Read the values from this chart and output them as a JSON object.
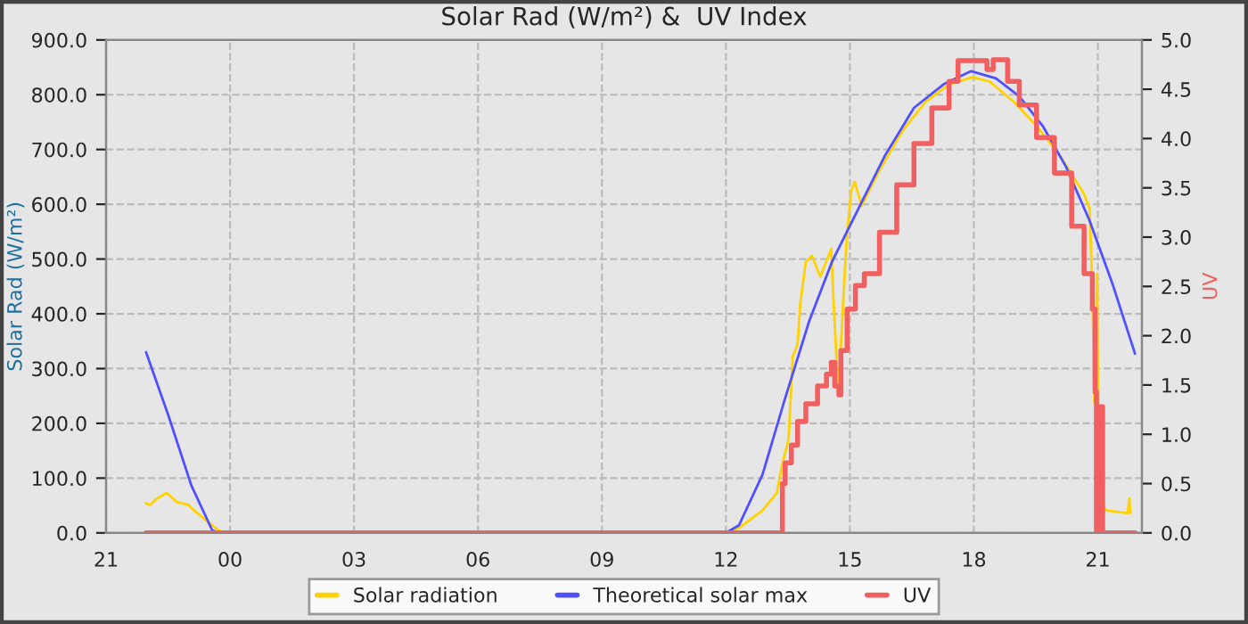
{
  "chart_data": {
    "type": "line",
    "title": "Solar Rad (W/m²) &  UV Index",
    "ylabel": "Solar Rad (W/m²)",
    "y2label": "UV",
    "xlim": [
      "2000-01-01T21:00",
      "2000-01-02T22:04"
    ],
    "xticks": [
      {
        "value": "2000-01-01T21:00",
        "label": "21"
      },
      {
        "value": "2000-01-02T00:00",
        "label": "00"
      },
      {
        "value": "2000-01-02T03:00",
        "label": "03"
      },
      {
        "value": "2000-01-02T06:00",
        "label": "06"
      },
      {
        "value": "2000-01-02T09:00",
        "label": "09"
      },
      {
        "value": "2000-01-02T12:00",
        "label": "12"
      },
      {
        "value": "2000-01-02T15:00",
        "label": "15"
      },
      {
        "value": "2000-01-02T18:00",
        "label": "18"
      },
      {
        "value": "2000-01-02T21:00",
        "label": "21"
      }
    ],
    "ylim": [
      0,
      900
    ],
    "yticks": [
      {
        "value": 0,
        "label": "0.0"
      },
      {
        "value": 100,
        "label": "100.0"
      },
      {
        "value": 200,
        "label": "200.0"
      },
      {
        "value": 300,
        "label": "300.0"
      },
      {
        "value": 400,
        "label": "400.0"
      },
      {
        "value": 500,
        "label": "500.0"
      },
      {
        "value": 600,
        "label": "600.0"
      },
      {
        "value": 700,
        "label": "700.0"
      },
      {
        "value": 800,
        "label": "800.0"
      },
      {
        "value": 900,
        "label": "900.0"
      }
    ],
    "y2lim": [
      0,
      5
    ],
    "y2ticks": [
      {
        "value": 0,
        "label": "0.0"
      },
      {
        "value": 0.5,
        "label": "0.5"
      },
      {
        "value": 1,
        "label": "1.0"
      },
      {
        "value": 1.5,
        "label": "1.5"
      },
      {
        "value": 2,
        "label": "2.0"
      },
      {
        "value": 2.5,
        "label": "2.5"
      },
      {
        "value": 3,
        "label": "3.0"
      },
      {
        "value": 3.5,
        "label": "3.5"
      },
      {
        "value": 4,
        "label": "4.0"
      },
      {
        "value": 4.5,
        "label": "4.5"
      },
      {
        "value": 5,
        "label": "5.0"
      }
    ],
    "grid": true,
    "legend": "bottom",
    "marker": "none",
    "line_style": "solid",
    "series": [
      {
        "name": "Solar radiation",
        "color": "#ffd200",
        "x": [
          "2000-01-01T21:58",
          "2000-01-01T22:04",
          "2000-01-01T22:13",
          "2000-01-01T22:28",
          "2000-01-01T22:43",
          "2000-01-01T23:00",
          "2000-01-01T23:06",
          "2000-01-01T23:26",
          "2000-01-01T23:43",
          "2000-01-01T23:52",
          "2000-01-02T12:00",
          "2000-01-02T12:19",
          "2000-01-02T12:53",
          "2000-01-02T13:14",
          "2000-01-02T13:22",
          "2000-01-02T13:31",
          "2000-01-02T13:37",
          "2000-01-02T13:44",
          "2000-01-02T13:48",
          "2000-01-02T13:56",
          "2000-01-02T14:05",
          "2000-01-02T14:17",
          "2000-01-02T14:33",
          "2000-01-02T14:36",
          "2000-01-02T14:43",
          "2000-01-02T14:47",
          "2000-01-02T14:52",
          "2000-01-02T14:56",
          "2000-01-02T15:02",
          "2000-01-02T15:07",
          "2000-01-02T15:17",
          "2000-01-02T15:43",
          "2000-01-02T16:16",
          "2000-01-02T16:50",
          "2000-01-02T17:24",
          "2000-01-02T17:58",
          "2000-01-02T18:23",
          "2000-01-02T18:58",
          "2000-01-02T19:31",
          "2000-01-02T20:05",
          "2000-01-02T20:40",
          "2000-01-02T20:48",
          "2000-01-02T20:52",
          "2000-01-02T20:55",
          "2000-01-02T20:59",
          "2000-01-02T21:01",
          "2000-01-02T21:05",
          "2000-01-02T21:13",
          "2000-01-02T21:43",
          "2000-01-02T21:46",
          "2000-01-02T21:47"
        ],
        "values": [
          54,
          51,
          62,
          73,
          56,
          51,
          43,
          22,
          5,
          1,
          0,
          9,
          41,
          73,
          127,
          171,
          322,
          344,
          419,
          495,
          506,
          468,
          519,
          430,
          257,
          344,
          462,
          549,
          624,
          641,
          597,
          662,
          733,
          787,
          819,
          832,
          824,
          787,
          743,
          689,
          619,
          592,
          452,
          236,
          473,
          149,
          52,
          41,
          36,
          63,
          36
        ]
      },
      {
        "name": "Theoretical solar max",
        "color": "#5050ff",
        "x": [
          "2000-01-01T21:58",
          "2000-01-01T22:30",
          "2000-01-01T23:04",
          "2000-01-01T23:34",
          "2000-01-01T23:43",
          "2000-01-02T12:00",
          "2000-01-02T12:19",
          "2000-01-02T12:53",
          "2000-01-02T13:26",
          "2000-01-02T14:01",
          "2000-01-02T14:34",
          "2000-01-02T15:08",
          "2000-01-02T15:51",
          "2000-01-02T16:33",
          "2000-01-02T17:16",
          "2000-01-02T17:56",
          "2000-01-02T18:32",
          "2000-01-02T19:06",
          "2000-01-02T19:40",
          "2000-01-02T20:14",
          "2000-01-02T20:48",
          "2000-01-02T21:22",
          "2000-01-02T21:54"
        ],
        "values": [
          330,
          216,
          86,
          5,
          0,
          0,
          14,
          106,
          246,
          387,
          495,
          581,
          689,
          776,
          819,
          843,
          830,
          797,
          743,
          668,
          570,
          452,
          327
        ]
      },
      {
        "name": "UV",
        "color": "#f06060",
        "type": "step",
        "axis": "y2",
        "x": [
          "2000-01-01T21:58",
          "2000-01-02T13:22",
          "2000-01-02T13:26",
          "2000-01-02T13:35",
          "2000-01-02T13:44",
          "2000-01-02T13:56",
          "2000-01-02T14:13",
          "2000-01-02T14:26",
          "2000-01-02T14:33",
          "2000-01-02T14:38",
          "2000-01-02T14:44",
          "2000-01-02T14:47",
          "2000-01-02T14:56",
          "2000-01-02T15:08",
          "2000-01-02T15:21",
          "2000-01-02T15:43",
          "2000-01-02T16:08",
          "2000-01-02T16:33",
          "2000-01-02T16:59",
          "2000-01-02T17:24",
          "2000-01-02T17:37",
          "2000-01-02T18:13",
          "2000-01-02T18:19",
          "2000-01-02T18:28",
          "2000-01-02T18:49",
          "2000-01-02T19:06",
          "2000-01-02T19:31",
          "2000-01-02T19:57",
          "2000-01-02T20:22",
          "2000-01-02T20:40",
          "2000-01-02T20:52",
          "2000-01-02T20:56",
          "2000-01-02T20:58",
          "2000-01-02T21:01",
          "2000-01-02T21:07",
          "2000-01-02T21:54"
        ],
        "values": [
          0,
          0.5,
          0.71,
          0.89,
          1.13,
          1.31,
          1.49,
          1.61,
          1.73,
          1.49,
          1.4,
          1.85,
          2.27,
          2.51,
          2.63,
          3.05,
          3.53,
          3.95,
          4.31,
          4.58,
          4.79,
          4.79,
          4.7,
          4.8,
          4.58,
          4.34,
          4.01,
          3.65,
          3.11,
          2.63,
          2.27,
          1.43,
          0,
          1.28,
          0,
          0
        ]
      }
    ]
  }
}
